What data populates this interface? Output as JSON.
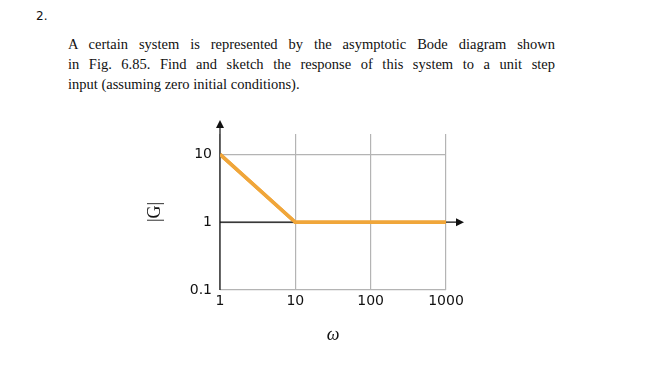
{
  "number": "2.",
  "text_lines": [
    "A certain system is represented by the asymptotic Bode diagram shown",
    "in Fig. 6.85. Find and sketch the response of this system to a unit step",
    "input (assuming zero initial conditions)."
  ],
  "chart_data": {
    "type": "line",
    "x": [
      1,
      10,
      1000
    ],
    "values": [
      10,
      1,
      1
    ],
    "color": "#f0a63a",
    "xlabel": "ω",
    "ylabel": "|G|",
    "log": true,
    "xlim": [
      1,
      1000
    ],
    "ylim": [
      0.1,
      20
    ],
    "xticks": [
      1,
      10,
      100,
      1000
    ],
    "yticks": [
      0.1,
      1,
      10
    ],
    "grid": true
  }
}
